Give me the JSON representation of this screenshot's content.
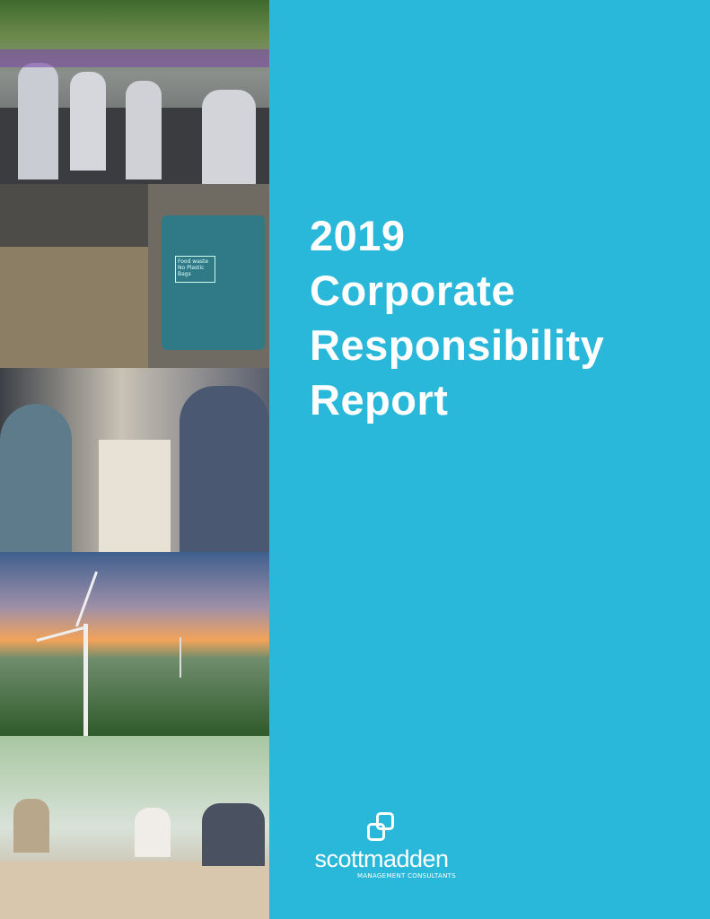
{
  "cover": {
    "title_lines": [
      "2019",
      "Corporate",
      "Responsibility",
      "Report"
    ],
    "background_color": "#29b8da"
  },
  "logo": {
    "brand": "scottmadden",
    "tagline": "MANAGEMENT CONSULTANTS"
  },
  "photos": {
    "bin_label": [
      "Food waste",
      "No Plastic Bags"
    ]
  }
}
